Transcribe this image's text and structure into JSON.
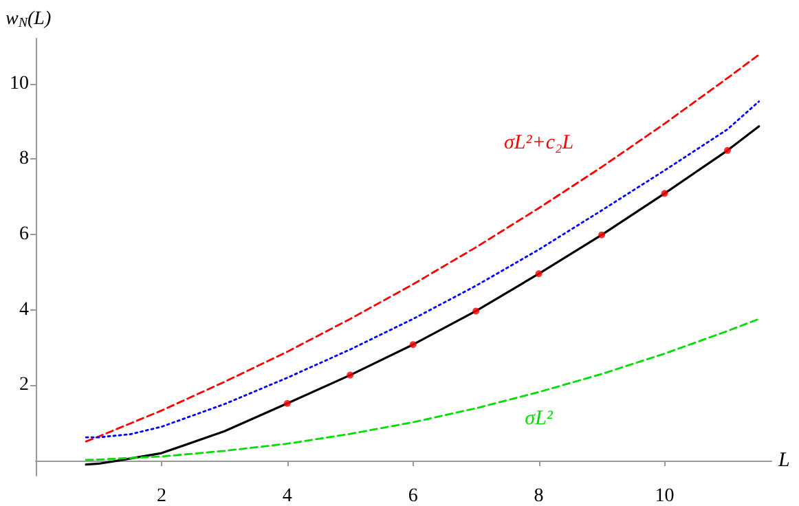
{
  "chart_data": {
    "type": "line",
    "xlabel": "L",
    "ylabel": "w$_{N}$(L)",
    "xlim": [
      0,
      11.7
    ],
    "ylim": [
      -0.4,
      11.2
    ],
    "xticks": [
      2,
      4,
      6,
      8,
      10
    ],
    "yticks": [
      2,
      4,
      6,
      8,
      10
    ],
    "grid": false,
    "series": [
      {
        "name": "σL²+c₂L",
        "color": "#ff0000",
        "line_style": "dashed",
        "marker": "none",
        "x": [
          0.8,
          1,
          2,
          3,
          4,
          5,
          6,
          7,
          8,
          9,
          10,
          11,
          11.5
        ],
        "values": [
          0.51,
          0.64,
          1.33,
          2.09,
          2.89,
          3.76,
          4.68,
          5.66,
          6.7,
          7.79,
          8.94,
          10.15,
          10.77
        ]
      },
      {
        "color": "#0000ff",
        "line_style": "dotted",
        "marker": "none",
        "x": [
          0.8,
          1,
          1.5,
          2,
          3,
          4,
          5,
          6,
          7,
          8,
          9,
          10,
          11,
          11.5
        ],
        "values": [
          0.62,
          0.62,
          0.7,
          0.9,
          1.5,
          2.2,
          2.95,
          3.76,
          4.64,
          5.6,
          6.64,
          7.7,
          8.79,
          9.53
        ]
      },
      {
        "color": "#000000",
        "line_style": "solid",
        "marker": "none",
        "x": [
          0.8,
          1,
          1.3,
          2,
          3,
          4,
          5,
          6,
          7,
          8,
          9,
          10,
          11,
          11.5
        ],
        "values": [
          -0.1,
          -0.08,
          0,
          0.2,
          0.78,
          1.52,
          2.27,
          3.08,
          3.97,
          4.96,
          5.99,
          7.09,
          8.23,
          8.87
        ]
      },
      {
        "name": "σL²",
        "color": "#00dd00",
        "line_style": "dashed",
        "marker": "none",
        "x": [
          0.8,
          1,
          2,
          3,
          4,
          5,
          6,
          7,
          8,
          9,
          10,
          11,
          11.5
        ],
        "values": [
          0.02,
          0.03,
          0.11,
          0.26,
          0.45,
          0.71,
          1.02,
          1.39,
          1.82,
          2.3,
          2.84,
          3.44,
          3.76
        ]
      },
      {
        "type": "scatter",
        "color": "#ff0000",
        "marker": "circle",
        "x": [
          4,
          5,
          6,
          7,
          8,
          9,
          10,
          11
        ],
        "values": [
          1.52,
          2.27,
          3.08,
          3.97,
          4.96,
          5.99,
          7.09,
          8.23
        ]
      }
    ]
  }
}
